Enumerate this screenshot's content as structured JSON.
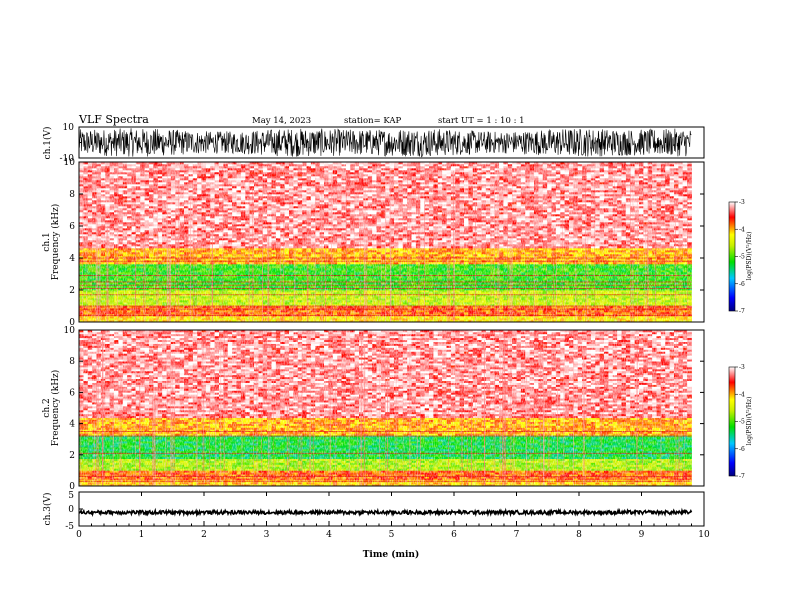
{
  "header": {
    "title": "VLF Spectra",
    "date": "May 14, 2023",
    "station": "station= KAP",
    "start": "start  UT  =   1 : 10 : 1"
  },
  "chart_data": [
    {
      "type": "line",
      "name": "ch1-waveform",
      "ylabel": "ch.1(V)",
      "ylim": [
        -10,
        10
      ],
      "yticks": [
        "10",
        "-10"
      ],
      "xlim": [
        0,
        10
      ],
      "description_of_signal": "dense noisy waveform spanning nearly full amplitude range"
    },
    {
      "type": "heatmap",
      "name": "ch1-spectrogram",
      "ylabel_line1": "ch.1",
      "ylabel_line2": "Frequency  (kHz)",
      "ylim": [
        0,
        10
      ],
      "yticks": [
        "0",
        "2",
        "4",
        "6",
        "8",
        "10"
      ],
      "xlim": [
        0,
        9.8
      ],
      "colorbar": {
        "label": "log(PSD)(V²/Hz)",
        "ticks": [
          "-3",
          "-4",
          "-5",
          "-6",
          "-7"
        ],
        "range": [
          -7,
          -3
        ]
      },
      "bands": [
        {
          "fmin": 0.0,
          "fmax": 0.4,
          "level": -4.2
        },
        {
          "fmin": 0.4,
          "fmax": 1.0,
          "level": -3.8
        },
        {
          "fmin": 1.0,
          "fmax": 2.0,
          "level": -4.6
        },
        {
          "fmin": 2.0,
          "fmax": 3.6,
          "level": -5.1
        },
        {
          "fmin": 3.6,
          "fmax": 4.6,
          "level": -4.0
        },
        {
          "fmin": 4.6,
          "fmax": 10.0,
          "level": -3.3
        }
      ],
      "tones_khz": [
        0.4,
        0.8,
        1.0,
        1.7,
        2.1,
        2.3,
        2.5,
        2.9,
        3.8,
        4.0
      ]
    },
    {
      "type": "heatmap",
      "name": "ch2-spectrogram",
      "ylabel_line1": "ch.2",
      "ylabel_line2": "Frequency  (kHz)",
      "ylim": [
        0,
        10
      ],
      "yticks": [
        "0",
        "2",
        "4",
        "6",
        "8",
        "10"
      ],
      "xlim": [
        0,
        9.8
      ],
      "colorbar": {
        "label": "log(PSD)(V²/Hz)",
        "ticks": [
          "-3",
          "-4",
          "-5",
          "-6",
          "-7"
        ],
        "range": [
          -7,
          -3
        ]
      },
      "bands": [
        {
          "fmin": 0.0,
          "fmax": 0.4,
          "level": -4.1
        },
        {
          "fmin": 0.4,
          "fmax": 1.0,
          "level": -3.8
        },
        {
          "fmin": 1.0,
          "fmax": 1.8,
          "level": -4.7
        },
        {
          "fmin": 1.8,
          "fmax": 3.2,
          "level": -5.3
        },
        {
          "fmin": 3.2,
          "fmax": 4.4,
          "level": -4.0
        },
        {
          "fmin": 4.4,
          "fmax": 10.0,
          "level": -3.3
        }
      ],
      "tones_khz": [
        0.3,
        0.6,
        2.1,
        3.2,
        3.5
      ]
    },
    {
      "type": "line",
      "name": "ch3-waveform",
      "ylabel": "ch.3(V)",
      "ylim": [
        -5,
        5
      ],
      "yticks": [
        "5",
        "0",
        "-5"
      ],
      "xlim": [
        0,
        10
      ],
      "xlabel": "Time  (min)",
      "xticks": [
        "0",
        "1",
        "2",
        "3",
        "4",
        "5",
        "6",
        "7",
        "8",
        "9",
        "10"
      ],
      "description_of_signal": "thin dense band centered near -1 V"
    }
  ]
}
